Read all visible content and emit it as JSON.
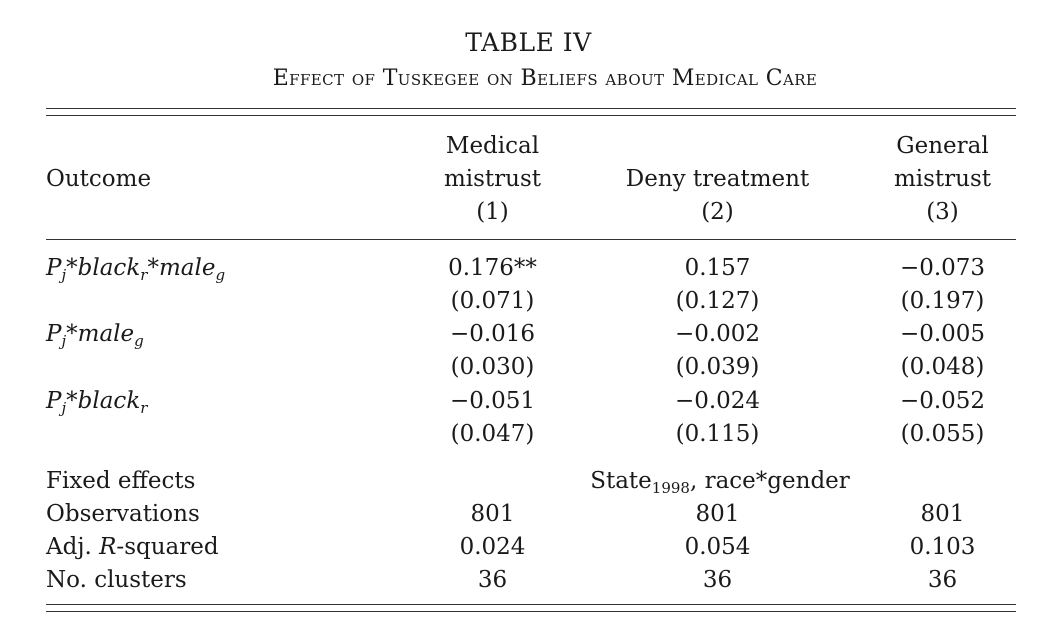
{
  "title": "TABLE IV",
  "subtitle": "Effect of Tuskegee on Beliefs about Medical Care",
  "header": {
    "outcome": "Outcome",
    "col1": [
      "Medical",
      "mistrust",
      "(1)"
    ],
    "col2": [
      "Deny treatment",
      "(2)"
    ],
    "col3": [
      "General",
      "mistrust",
      "(3)"
    ]
  },
  "rows": [
    {
      "label_main": "P",
      "label_sub1": "j",
      "label_mid": "*black",
      "label_sub2": "r",
      "label_end": "*male",
      "label_sub3": "g",
      "coef": [
        "0.176**",
        "0.157",
        "−0.073"
      ],
      "se": [
        "(0.071)",
        "(0.127)",
        "(0.197)"
      ]
    },
    {
      "label_main": "P",
      "label_sub1": "j",
      "label_mid": "*male",
      "label_sub2": "g",
      "coef": [
        "−0.016",
        "−0.002",
        "−0.005"
      ],
      "se": [
        "(0.030)",
        "(0.039)",
        "(0.048)"
      ]
    },
    {
      "label_main": "P",
      "label_sub1": "j",
      "label_mid": "*black",
      "label_sub2": "r",
      "coef": [
        "−0.051",
        "−0.024",
        "−0.052"
      ],
      "se": [
        "(0.047)",
        "(0.115)",
        "(0.055)"
      ]
    }
  ],
  "footer": {
    "fixed_effects_label": "Fixed effects",
    "fixed_effects_value_a": "State",
    "fixed_effects_value_sub": "1998",
    "fixed_effects_value_b": ", race*gender",
    "observations_label": "Observations",
    "observations": [
      "801",
      "801",
      "801"
    ],
    "adj_label_a": "Adj. ",
    "adj_label_italic": "R",
    "adj_label_b": "-squared",
    "adj_r2": [
      "0.024",
      "0.054",
      "0.103"
    ],
    "clusters_label": "No. clusters",
    "clusters": [
      "36",
      "36",
      "36"
    ]
  }
}
